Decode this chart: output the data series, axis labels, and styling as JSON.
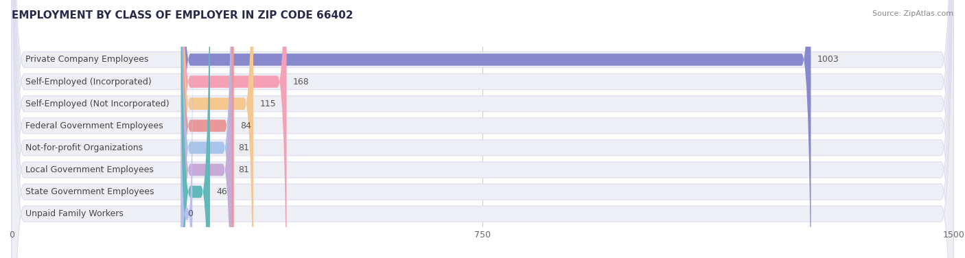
{
  "title": "EMPLOYMENT BY CLASS OF EMPLOYER IN ZIP CODE 66402",
  "source": "Source: ZipAtlas.com",
  "categories": [
    "Private Company Employees",
    "Self-Employed (Incorporated)",
    "Self-Employed (Not Incorporated)",
    "Federal Government Employees",
    "Not-for-profit Organizations",
    "Local Government Employees",
    "State Government Employees",
    "Unpaid Family Workers"
  ],
  "values": [
    1003,
    168,
    115,
    84,
    81,
    81,
    46,
    0
  ],
  "bar_colors": [
    "#8888cc",
    "#f5a0b5",
    "#f5c890",
    "#e89898",
    "#a8c4e8",
    "#c8aad8",
    "#60b8b8",
    "#b8c0f0"
  ],
  "bg_row_color": "#eeeef5",
  "bg_row_edge": "#ddddee",
  "xlim": [
    0,
    1500
  ],
  "xticks": [
    0,
    750,
    1500
  ],
  "title_fontsize": 11,
  "label_fontsize": 9,
  "value_fontsize": 9,
  "background_color": "#ffffff",
  "grid_color": "#cccccc"
}
